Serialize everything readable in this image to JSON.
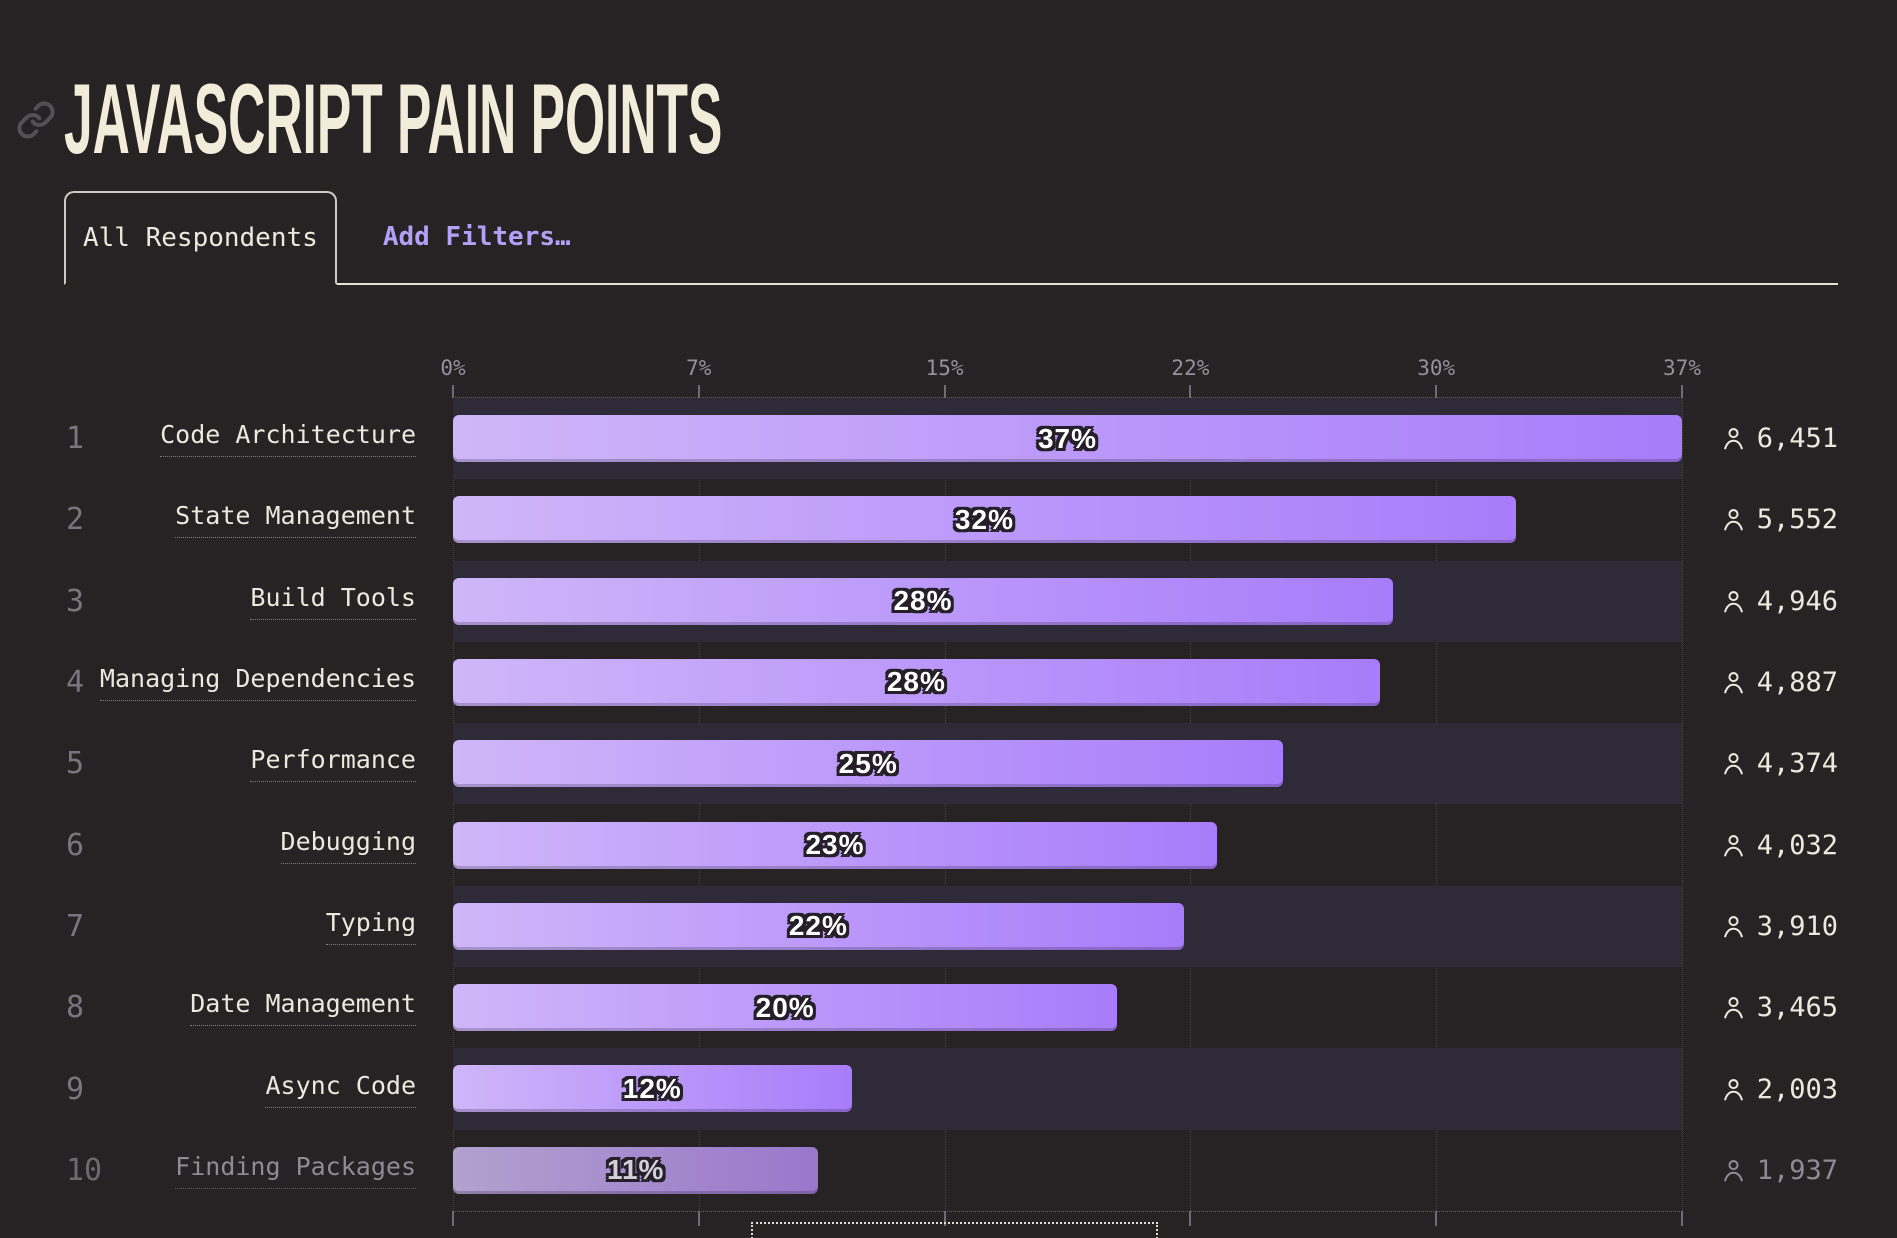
{
  "theme": {
    "background": "#272324",
    "stripe": "#2f2a38",
    "bar_start": "#cfb6f9",
    "bar_end": "#a87cfa",
    "bar_muted_start": "#b2a1cf",
    "bar_muted_end": "#9a77cc",
    "cream_text": "#ece8dd",
    "muted_text": "#8f8a94",
    "title_color": "#f2ecda",
    "accent_purple": "#b2a1f7",
    "tab_line": "#e6e2d8"
  },
  "header": {
    "title": "JAVASCRIPT PAIN POINTS",
    "link_icon": "link-icon"
  },
  "tabs": {
    "active_tab": "All Respondents",
    "add_filters_label": "Add Filters…"
  },
  "chart_data": {
    "type": "bar",
    "orientation": "horizontal",
    "title": "JavaScript Pain Points",
    "xlabel": "",
    "ylabel": "",
    "axis_max_percent": 37,
    "tick_labels": [
      "0%",
      "7%",
      "15%",
      "22%",
      "30%",
      "37%"
    ],
    "grid": "dotted-vertical",
    "legend": "none",
    "person_icon": "person-icon",
    "rows": [
      {
        "rank": "1",
        "label": "Code Architecture",
        "percent": 37,
        "percent_label": "37%",
        "count": "6,451",
        "muted": false
      },
      {
        "rank": "2",
        "label": "State Management",
        "percent": 32,
        "percent_label": "32%",
        "count": "5,552",
        "muted": false
      },
      {
        "rank": "3",
        "label": "Build Tools",
        "percent": 28.3,
        "percent_label": "28%",
        "count": "4,946",
        "muted": false
      },
      {
        "rank": "4",
        "label": "Managing Dependencies",
        "percent": 27.9,
        "percent_label": "28%",
        "count": "4,887",
        "muted": false
      },
      {
        "rank": "5",
        "label": "Performance",
        "percent": 25,
        "percent_label": "25%",
        "count": "4,374",
        "muted": false
      },
      {
        "rank": "6",
        "label": "Debugging",
        "percent": 23,
        "percent_label": "23%",
        "count": "4,032",
        "muted": false
      },
      {
        "rank": "7",
        "label": "Typing",
        "percent": 22,
        "percent_label": "22%",
        "count": "3,910",
        "muted": false
      },
      {
        "rank": "8",
        "label": "Date Management",
        "percent": 20,
        "percent_label": "20%",
        "count": "3,465",
        "muted": false
      },
      {
        "rank": "9",
        "label": "Async Code",
        "percent": 12,
        "percent_label": "12%",
        "count": "2,003",
        "muted": false
      },
      {
        "rank": "10",
        "label": "Finding Packages",
        "percent": 11,
        "percent_label": "11%",
        "count": "1,937",
        "muted": true
      }
    ]
  }
}
